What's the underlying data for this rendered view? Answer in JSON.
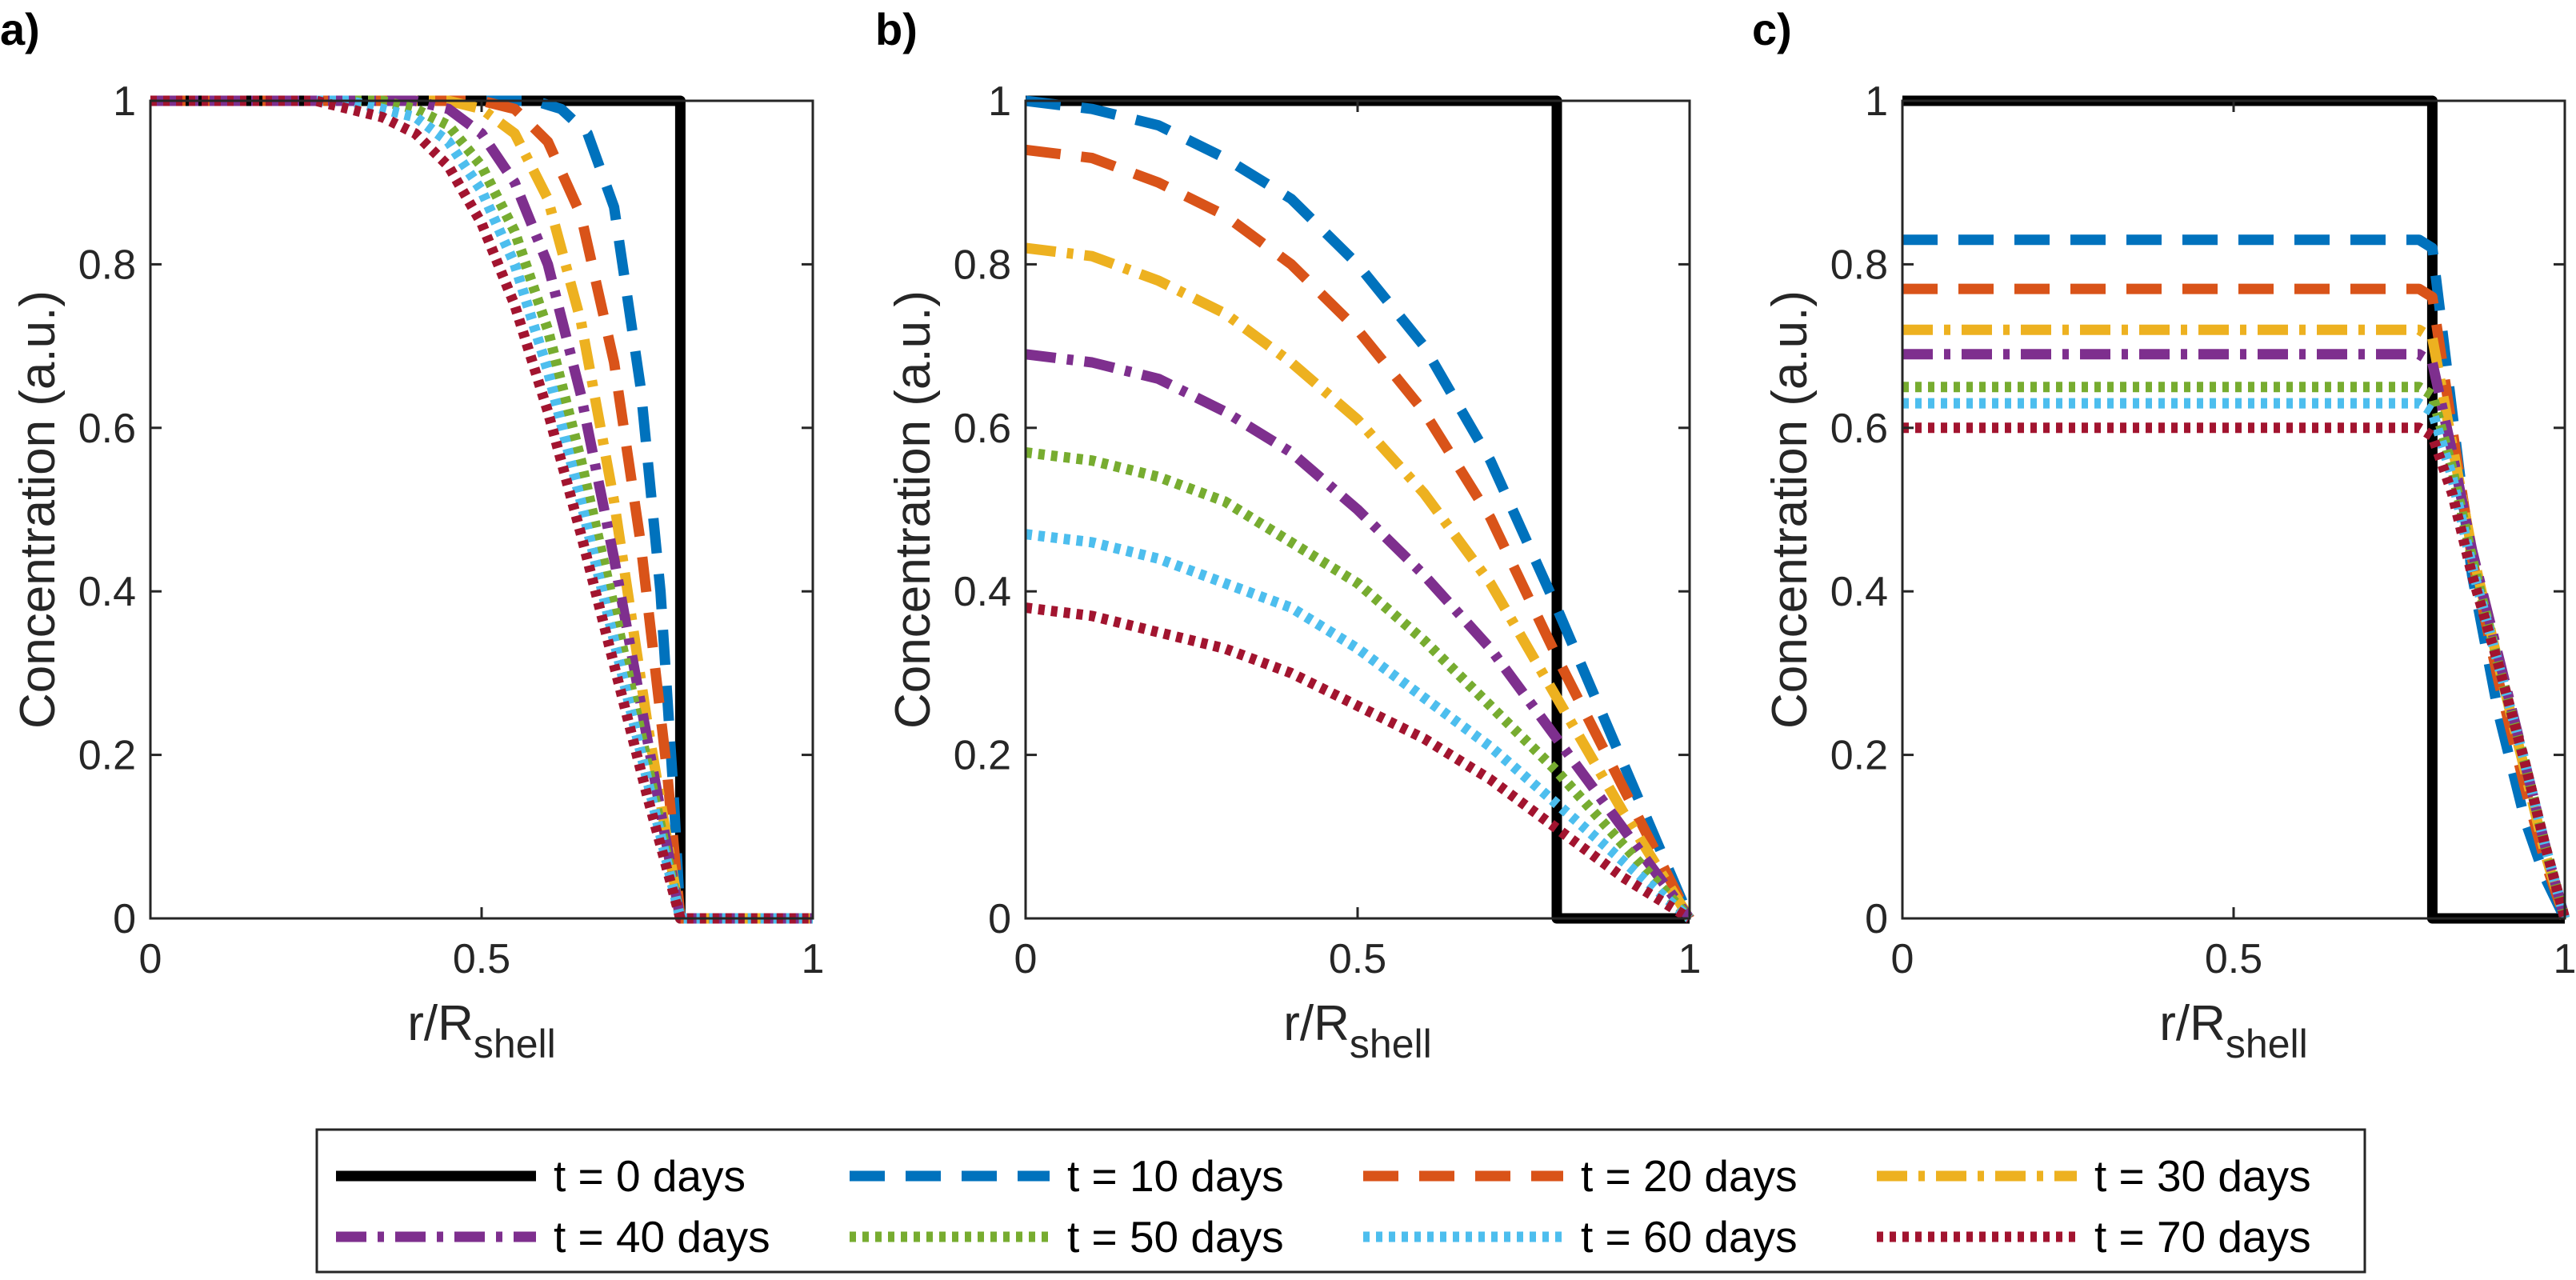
{
  "series_style": [
    {
      "name": "t = 0 days",
      "color": "#000000",
      "dash": "solid"
    },
    {
      "name": "t = 10 days",
      "color": "#0072BD",
      "dash": "dashed"
    },
    {
      "name": "t = 20 days",
      "color": "#D95319",
      "dash": "dashed"
    },
    {
      "name": "t = 30 days",
      "color": "#EDB120",
      "dash": "dash-dot"
    },
    {
      "name": "t = 40 days",
      "color": "#7E2F8E",
      "dash": "dash-dot"
    },
    {
      "name": "t = 50 days",
      "color": "#77AC30",
      "dash": "dotted"
    },
    {
      "name": "t = 60 days",
      "color": "#4DBEEE",
      "dash": "dotted"
    },
    {
      "name": "t = 70 days",
      "color": "#A2142F",
      "dash": "dotted"
    }
  ],
  "legend": {
    "placement": "bottom",
    "entries": [
      "t = 0 days",
      "t = 10 days",
      "t = 20 days",
      "t = 30 days",
      "t = 40 days",
      "t = 50 days",
      "t = 60 days",
      "t = 70 days"
    ]
  },
  "chart_data": [
    {
      "type": "line",
      "panel_label": "a)",
      "xlabel": "r/R",
      "xlabel_sub": "shell",
      "ylabel": "Concentration (a.u.)",
      "xlim": [
        0,
        1
      ],
      "ylim": [
        0,
        1
      ],
      "xticks": [
        "0",
        "0.5",
        "1"
      ],
      "yticks": [
        "0",
        "0.2",
        "0.4",
        "0.6",
        "0.8",
        "1"
      ],
      "grid": false,
      "series": [
        {
          "name": "t = 0 days",
          "x": [
            0,
            0.8,
            0.8,
            1
          ],
          "y": [
            1,
            1,
            0,
            0
          ]
        },
        {
          "name": "t = 10 days",
          "x": [
            0,
            0.58,
            0.62,
            0.66,
            0.7,
            0.74,
            0.77,
            0.79,
            0.8,
            1
          ],
          "y": [
            1,
            1,
            0.99,
            0.96,
            0.87,
            0.65,
            0.4,
            0.15,
            0,
            0
          ]
        },
        {
          "name": "t = 20 days",
          "x": [
            0,
            0.5,
            0.55,
            0.6,
            0.65,
            0.7,
            0.74,
            0.78,
            0.8,
            1
          ],
          "y": [
            1,
            1,
            0.99,
            0.95,
            0.86,
            0.68,
            0.46,
            0.18,
            0,
            0
          ]
        },
        {
          "name": "t = 30 days",
          "x": [
            0,
            0.45,
            0.5,
            0.55,
            0.6,
            0.65,
            0.7,
            0.75,
            0.8,
            1
          ],
          "y": [
            1,
            1,
            0.99,
            0.96,
            0.88,
            0.73,
            0.51,
            0.24,
            0,
            0
          ]
        },
        {
          "name": "t = 40 days",
          "x": [
            0,
            0.4,
            0.45,
            0.5,
            0.55,
            0.6,
            0.65,
            0.7,
            0.75,
            0.8,
            1
          ],
          "y": [
            1,
            1,
            0.99,
            0.96,
            0.9,
            0.8,
            0.64,
            0.44,
            0.22,
            0,
            0
          ]
        },
        {
          "name": "t = 50 days",
          "x": [
            0,
            0.35,
            0.4,
            0.45,
            0.5,
            0.55,
            0.6,
            0.65,
            0.7,
            0.75,
            0.8,
            1
          ],
          "y": [
            1,
            1,
            0.99,
            0.97,
            0.92,
            0.84,
            0.72,
            0.56,
            0.38,
            0.19,
            0,
            0
          ]
        },
        {
          "name": "t = 60 days",
          "x": [
            0,
            0.3,
            0.35,
            0.4,
            0.45,
            0.5,
            0.55,
            0.6,
            0.65,
            0.7,
            0.75,
            0.8,
            1
          ],
          "y": [
            1,
            1,
            0.99,
            0.98,
            0.95,
            0.89,
            0.8,
            0.67,
            0.51,
            0.34,
            0.17,
            0,
            0
          ]
        },
        {
          "name": "t = 70 days",
          "x": [
            0,
            0.25,
            0.3,
            0.35,
            0.4,
            0.45,
            0.5,
            0.55,
            0.6,
            0.65,
            0.7,
            0.75,
            0.8,
            1
          ],
          "y": [
            1,
            1,
            0.99,
            0.98,
            0.96,
            0.92,
            0.85,
            0.75,
            0.62,
            0.47,
            0.31,
            0.15,
            0,
            0
          ]
        }
      ]
    },
    {
      "type": "line",
      "panel_label": "b)",
      "xlabel": "r/R",
      "xlabel_sub": "shell",
      "ylabel": "Concentration (a.u.)",
      "xlim": [
        0,
        1
      ],
      "ylim": [
        0,
        1
      ],
      "xticks": [
        "0",
        "0.5",
        "1"
      ],
      "yticks": [
        "0",
        "0.2",
        "0.4",
        "0.6",
        "0.8",
        "1"
      ],
      "grid": false,
      "series": [
        {
          "name": "t = 0 days",
          "x": [
            0,
            0.8,
            0.8,
            1
          ],
          "y": [
            1,
            1,
            0,
            0
          ]
        },
        {
          "name": "t = 10 days",
          "x": [
            0,
            0.1,
            0.2,
            0.3,
            0.4,
            0.5,
            0.6,
            0.7,
            0.8,
            0.9,
            1.0
          ],
          "y": [
            1.0,
            0.99,
            0.97,
            0.93,
            0.88,
            0.8,
            0.7,
            0.56,
            0.38,
            0.19,
            0.0
          ]
        },
        {
          "name": "t = 20 days",
          "x": [
            0,
            0.1,
            0.2,
            0.3,
            0.4,
            0.5,
            0.6,
            0.7,
            0.8,
            0.9,
            1.0
          ],
          "y": [
            0.94,
            0.93,
            0.9,
            0.86,
            0.8,
            0.72,
            0.62,
            0.49,
            0.32,
            0.16,
            0.0
          ]
        },
        {
          "name": "t = 30 days",
          "x": [
            0,
            0.1,
            0.2,
            0.3,
            0.4,
            0.5,
            0.6,
            0.7,
            0.8,
            0.9,
            1.0
          ],
          "y": [
            0.82,
            0.81,
            0.78,
            0.74,
            0.68,
            0.61,
            0.52,
            0.41,
            0.27,
            0.13,
            0.0
          ]
        },
        {
          "name": "t = 40 days",
          "x": [
            0,
            0.1,
            0.2,
            0.3,
            0.4,
            0.5,
            0.6,
            0.7,
            0.8,
            0.9,
            1.0
          ],
          "y": [
            0.69,
            0.68,
            0.66,
            0.62,
            0.57,
            0.5,
            0.42,
            0.33,
            0.22,
            0.11,
            0.0
          ]
        },
        {
          "name": "t = 50 days",
          "x": [
            0,
            0.1,
            0.2,
            0.3,
            0.4,
            0.5,
            0.6,
            0.7,
            0.8,
            0.9,
            1.0
          ],
          "y": [
            0.57,
            0.56,
            0.54,
            0.51,
            0.46,
            0.41,
            0.34,
            0.26,
            0.18,
            0.09,
            0.0
          ]
        },
        {
          "name": "t = 60 days",
          "x": [
            0,
            0.1,
            0.2,
            0.3,
            0.4,
            0.5,
            0.6,
            0.7,
            0.8,
            0.9,
            1.0
          ],
          "y": [
            0.47,
            0.46,
            0.44,
            0.41,
            0.38,
            0.33,
            0.27,
            0.21,
            0.14,
            0.07,
            0.0
          ]
        },
        {
          "name": "t = 70 days",
          "x": [
            0,
            0.1,
            0.2,
            0.3,
            0.4,
            0.5,
            0.6,
            0.7,
            0.8,
            0.9,
            1.0
          ],
          "y": [
            0.38,
            0.37,
            0.35,
            0.33,
            0.3,
            0.26,
            0.22,
            0.17,
            0.11,
            0.05,
            0.0
          ]
        }
      ]
    },
    {
      "type": "line",
      "panel_label": "c)",
      "xlabel": "r/R",
      "xlabel_sub": "shell",
      "ylabel": "Concentration (a.u.)",
      "xlim": [
        0,
        1
      ],
      "ylim": [
        0,
        1
      ],
      "xticks": [
        "0",
        "0.5",
        "1"
      ],
      "yticks": [
        "0",
        "0.2",
        "0.4",
        "0.6",
        "0.8",
        "1"
      ],
      "grid": false,
      "series": [
        {
          "name": "t = 0 days",
          "x": [
            0,
            0.8,
            0.8,
            1
          ],
          "y": [
            1,
            1,
            0,
            0
          ]
        },
        {
          "name": "t = 10 days",
          "x": [
            0,
            0.78,
            0.8,
            0.83,
            0.86,
            0.9,
            0.94,
            0.97,
            1.0
          ],
          "y": [
            0.83,
            0.83,
            0.82,
            0.62,
            0.42,
            0.25,
            0.12,
            0.05,
            0.0
          ]
        },
        {
          "name": "t = 20 days",
          "x": [
            0,
            0.78,
            0.8,
            0.83,
            0.86,
            0.9,
            0.94,
            0.97,
            1.0
          ],
          "y": [
            0.77,
            0.77,
            0.76,
            0.6,
            0.44,
            0.29,
            0.16,
            0.07,
            0.0
          ]
        },
        {
          "name": "t = 30 days",
          "x": [
            0,
            0.78,
            0.8,
            0.83,
            0.86,
            0.9,
            0.94,
            0.97,
            1.0
          ],
          "y": [
            0.72,
            0.72,
            0.71,
            0.58,
            0.45,
            0.31,
            0.18,
            0.08,
            0.0
          ]
        },
        {
          "name": "t = 40 days",
          "x": [
            0,
            0.78,
            0.8,
            0.83,
            0.86,
            0.9,
            0.94,
            0.97,
            1.0
          ],
          "y": [
            0.69,
            0.69,
            0.68,
            0.57,
            0.45,
            0.32,
            0.19,
            0.09,
            0.0
          ]
        },
        {
          "name": "t = 50 days",
          "x": [
            0,
            0.78,
            0.8,
            0.83,
            0.86,
            0.9,
            0.94,
            0.97,
            1.0
          ],
          "y": [
            0.65,
            0.65,
            0.64,
            0.55,
            0.44,
            0.31,
            0.19,
            0.09,
            0.0
          ]
        },
        {
          "name": "t = 60 days",
          "x": [
            0,
            0.78,
            0.8,
            0.83,
            0.86,
            0.9,
            0.94,
            0.97,
            1.0
          ],
          "y": [
            0.63,
            0.63,
            0.62,
            0.54,
            0.43,
            0.31,
            0.19,
            0.09,
            0.0
          ]
        },
        {
          "name": "t = 70 days",
          "x": [
            0,
            0.78,
            0.8,
            0.83,
            0.86,
            0.9,
            0.94,
            0.97,
            1.0
          ],
          "y": [
            0.6,
            0.6,
            0.59,
            0.52,
            0.42,
            0.31,
            0.19,
            0.09,
            0.0
          ]
        }
      ]
    }
  ]
}
